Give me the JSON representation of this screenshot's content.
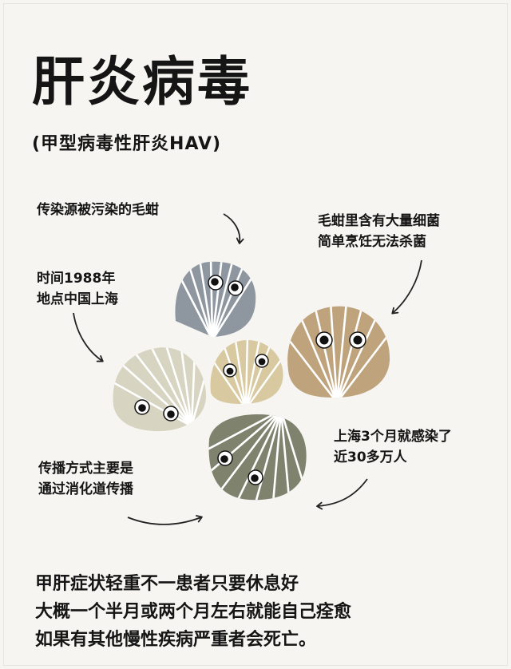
{
  "title": "肝炎病毒",
  "subtitle": "(甲型病毒性肝炎HAV)",
  "notes": {
    "source": "传染源被污染的毛蚶",
    "bacteria": [
      "毛蚶里含有大量细菌",
      "简单烹饪无法杀菌"
    ],
    "time": [
      "时间1988年",
      "地点中国上海"
    ],
    "infected": [
      "上海3个月就感染了",
      "近30多万人"
    ],
    "spread": [
      "传播方式主要是",
      "通过消化道传播"
    ]
  },
  "summary": [
    "甲肝症状轻重不一患者只要休息好",
    "大概一个半月或两个月左右就能自己痊愈",
    "如果有其他慢性疾病严重者会死亡。"
  ],
  "colors": {
    "shell_blue_gray": "#8e96a0",
    "shell_tan": "#bfa37c",
    "shell_pale": "#d7d4c1",
    "shell_beige": "#d8c9a0",
    "shell_olive": "#7f836e"
  },
  "icons": [
    "clam-icon",
    "curved-arrow-icon"
  ]
}
